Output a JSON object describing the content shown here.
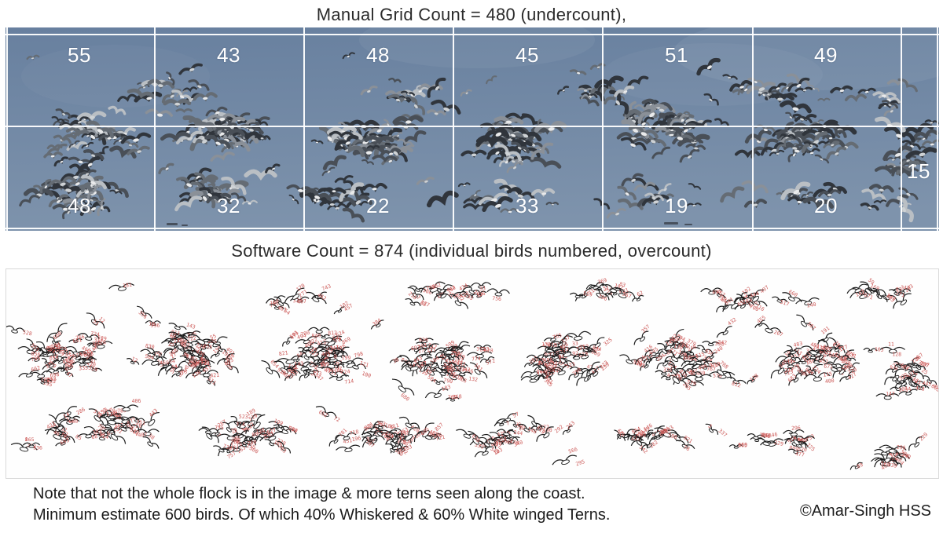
{
  "titles": {
    "manual_grid": "Manual Grid Count = 480 (undercount),",
    "software": "Software Count = 874 (individual birds numbered, overcount)"
  },
  "grid_panel": {
    "description": "photo of tern flock with white counting grid overlay",
    "row1_counts": [
      "55",
      "43",
      "48",
      "45",
      "51",
      "49"
    ],
    "row2_counts": [
      "48",
      "32",
      "22",
      "33",
      "19",
      "20"
    ],
    "side_count": "15",
    "manual_total": "480",
    "sky_top_color": "#68809f",
    "sky_bottom_color": "#7e93ac",
    "grid_line_color": "#ffffff",
    "count_text_color": "#ffffff"
  },
  "software_panel": {
    "description": "software-processed image: outlined birds each tagged with a red number",
    "software_total": "874",
    "background_color": "#fefefe",
    "border_color": "#d9d9d9",
    "bird_outline_color": "#1c1c1c",
    "number_color": "#cc5a58"
  },
  "note": {
    "line1": "Note that not the whole flock is in the image & more terns seen along the coast.",
    "line2": "Minimum estimate 600 birds. Of which 40% Whiskered & 60% White winged Terns.",
    "credit": "©Amar-Singh HSS"
  }
}
